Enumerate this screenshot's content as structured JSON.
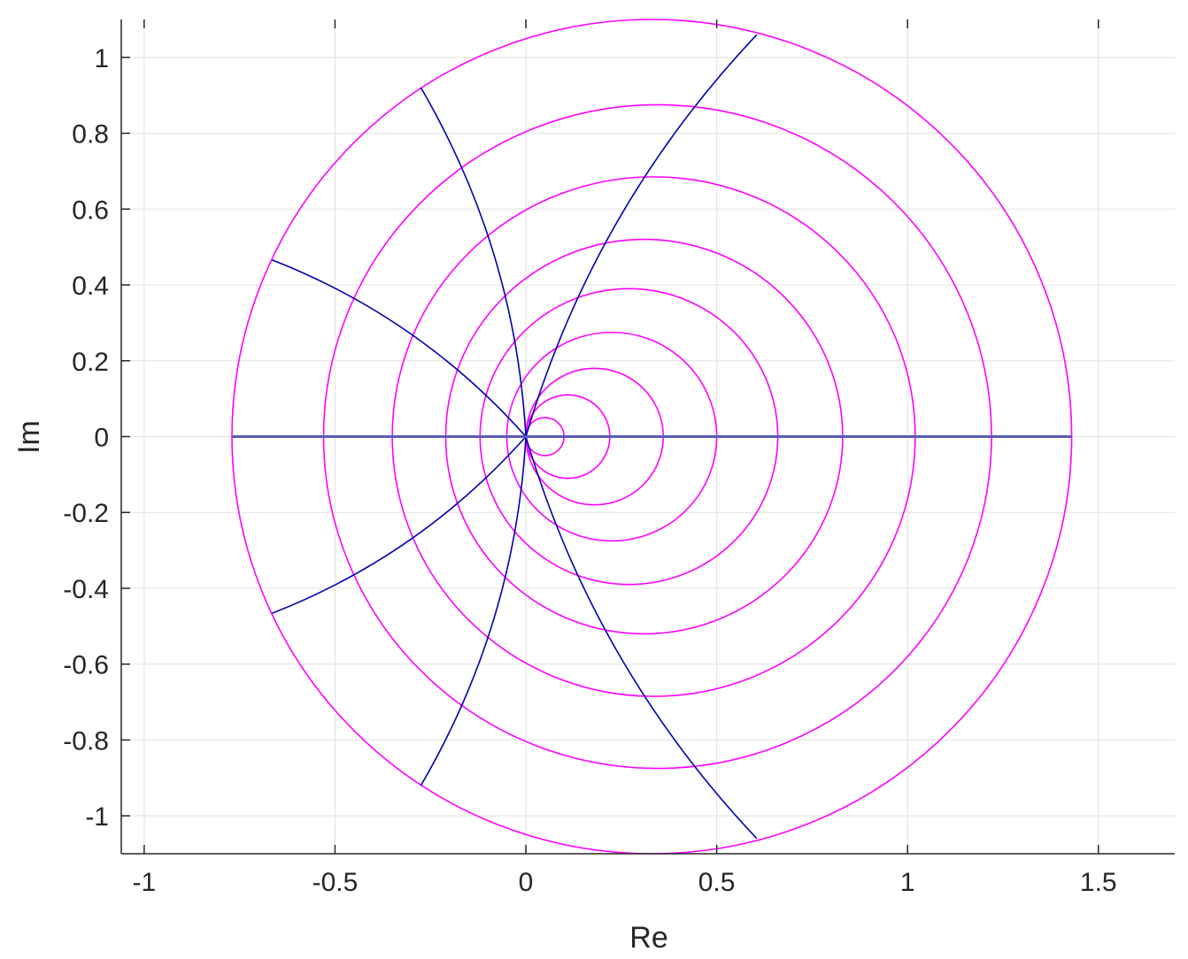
{
  "chart_data": {
    "type": "line",
    "title": "",
    "xlabel": "Re",
    "ylabel": "Im",
    "xlim": [
      -1.06,
      1.7
    ],
    "ylim": [
      -1.1,
      1.1
    ],
    "grid": true,
    "legend": "none",
    "xticks": [
      -1,
      -0.5,
      0,
      0.5,
      1,
      1.5
    ],
    "xtick_labels": [
      "-1",
      "-0.5",
      "0",
      "0.5",
      "1",
      "1.5"
    ],
    "yticks": [
      1,
      0.8,
      0.6,
      0.4,
      0.2,
      0,
      -0.2,
      -0.4,
      -0.6,
      -0.8,
      -1
    ],
    "ytick_labels": [
      "1",
      "0.8",
      "0.6",
      "0.4",
      "0.2",
      "0",
      "-0.2",
      "-0.4",
      "-0.6",
      "-0.8",
      "-1"
    ],
    "circles": [
      {
        "x_left": 0,
        "x_right": 0.1
      },
      {
        "x_left": 0,
        "x_right": 0.22
      },
      {
        "x_left": 0,
        "x_right": 0.36
      },
      {
        "x_left": -0.05,
        "x_right": 0.5
      },
      {
        "x_left": -0.12,
        "x_right": 0.66
      },
      {
        "x_left": -0.21,
        "x_right": 0.83
      },
      {
        "x_left": -0.35,
        "x_right": 1.02
      },
      {
        "x_left": -0.53,
        "x_right": 1.22
      },
      {
        "x_left": -0.77,
        "x_right": 1.43
      }
    ],
    "radial_lines": [
      {
        "start": [
          0,
          0
        ],
        "end": [
          -0.275,
          0.92
        ]
      },
      {
        "start": [
          0,
          0
        ],
        "end": [
          -0.665,
          0.466
        ]
      },
      {
        "start": [
          0,
          0
        ],
        "end": [
          0.605,
          1.06
        ]
      },
      {
        "start": [
          0,
          0
        ],
        "end": [
          -0.275,
          -0.92
        ]
      },
      {
        "start": [
          0,
          0
        ],
        "end": [
          -0.665,
          -0.466
        ]
      },
      {
        "start": [
          0,
          0
        ],
        "end": [
          0.605,
          -1.06
        ]
      }
    ],
    "real_axis_line": {
      "x_start": -0.77,
      "x_end": 1.43,
      "y": 0
    },
    "colors": {
      "circles": "#ff00ff",
      "radial": "#0000b4",
      "real_axis": "#5a5ab4",
      "grid": "#e6e6e6",
      "axes": "#262626"
    }
  }
}
